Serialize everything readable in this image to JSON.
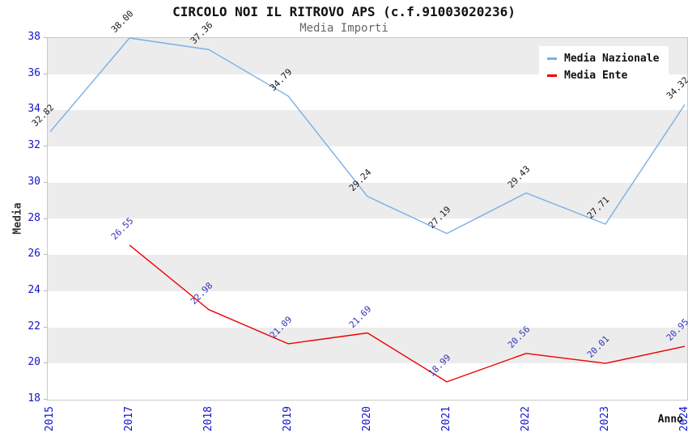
{
  "title": "CIRCOLO NOI IL RITROVO APS (c.f.91003020236)",
  "subtitle": "Media Importi",
  "chart_data": {
    "type": "line",
    "x": [
      "2015",
      "2017",
      "2018",
      "2019",
      "2020",
      "2021",
      "2022",
      "2023",
      "2024"
    ],
    "series": [
      {
        "name": "Media Nazionale",
        "color": "#79afe5",
        "label_color": "#1a1a1a",
        "values": [
          32.82,
          38.0,
          37.36,
          34.79,
          29.24,
          27.19,
          29.43,
          27.71,
          34.32
        ]
      },
      {
        "name": "Media Ente",
        "color": "#ee0000",
        "label_color": "#3333bb",
        "values": [
          null,
          26.55,
          22.98,
          21.09,
          21.69,
          18.99,
          20.56,
          20.01,
          20.95
        ]
      }
    ],
    "xlabel": "Anno",
    "ylabel": "Media",
    "ylim": [
      18,
      38
    ],
    "ytick_step": 2,
    "data_label_decimals": 2,
    "grid": "alternating-horizontal-bands",
    "band_color": "#ececec",
    "plot_border_color": "#c8c8c8",
    "tick_label_color": "#1414cc",
    "legend_position": "top-right"
  }
}
